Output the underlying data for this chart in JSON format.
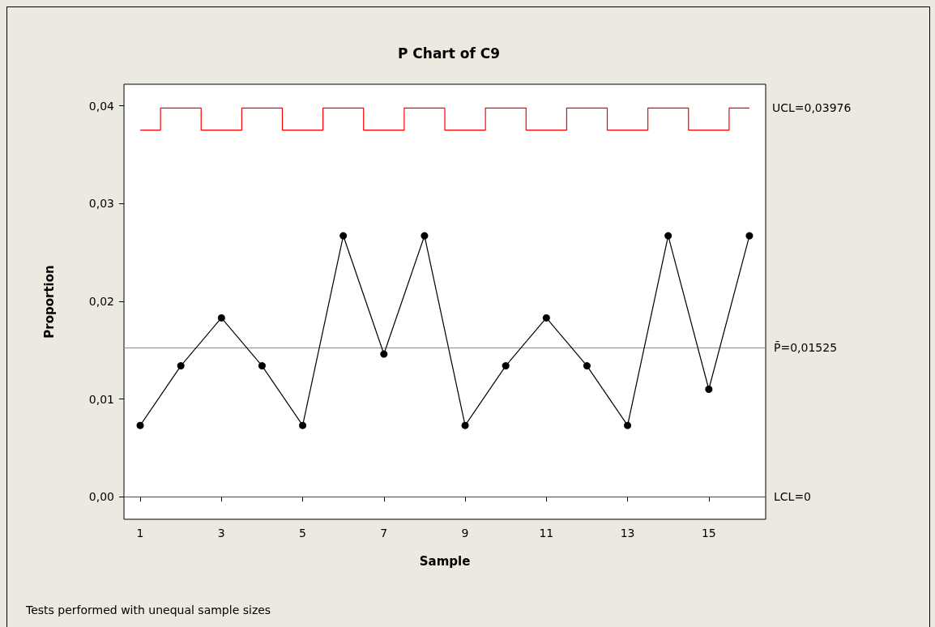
{
  "chart_data": {
    "type": "line",
    "title": "P Chart of C9",
    "xlabel": "Sample",
    "ylabel": "Proportion",
    "x": [
      1,
      2,
      3,
      4,
      5,
      6,
      7,
      8,
      9,
      10,
      11,
      12,
      13,
      14,
      15,
      16
    ],
    "series": [
      {
        "color": "#000000",
        "marker": "circle",
        "values": [
          0.0073,
          0.0134,
          0.0183,
          0.0134,
          0.0073,
          0.0267,
          0.0146,
          0.0267,
          0.0073,
          0.0134,
          0.0183,
          0.0134,
          0.0073,
          0.0267,
          0.011,
          0.0267
        ]
      },
      {
        "type": "step",
        "name": "UCL=0,03976",
        "color": "#ff0000",
        "marker": "none",
        "values": [
          0.0375,
          0.03976,
          0.0375,
          0.03976,
          0.0375,
          0.03976,
          0.0375,
          0.03976,
          0.0375,
          0.03976,
          0.0375,
          0.03976,
          0.0375,
          0.03976,
          0.0375,
          0.03976
        ]
      }
    ],
    "ref_lines": [
      {
        "axis": "y",
        "value": 0.01525,
        "label": "P̄=0,01525",
        "color": "#00ee00"
      },
      {
        "axis": "y",
        "value": 0,
        "label": "LCL=0",
        "color": "#ff0000"
      }
    ],
    "xlim": [
      0.6,
      16.4
    ],
    "xticks": [
      1,
      3,
      5,
      7,
      9,
      11,
      13,
      15
    ],
    "ylim": [
      -0.0023,
      0.0422
    ],
    "yticks": [
      {
        "value": 0,
        "label": "0,00"
      },
      {
        "value": 0.01,
        "label": "0,01"
      },
      {
        "value": 0.02,
        "label": "0,02"
      },
      {
        "value": 0.03,
        "label": "0,03"
      },
      {
        "value": 0.04,
        "label": "0,04"
      }
    ],
    "annotations": [
      "Tests performed with unequal sample sizes"
    ]
  }
}
